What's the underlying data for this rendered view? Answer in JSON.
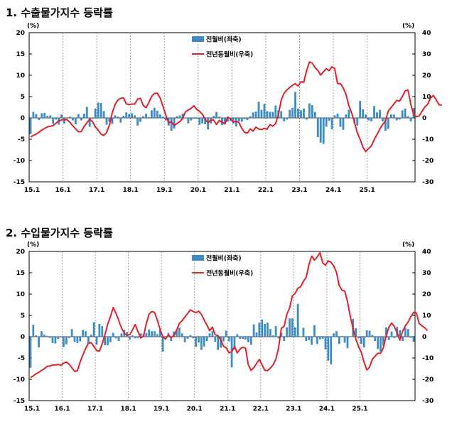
{
  "chart_data": [
    {
      "type": "bar+line",
      "title": "1. 수출물가지수 등락률",
      "left_unit": "(%)",
      "right_unit": "(%)",
      "left_ylim": [
        -15,
        20
      ],
      "right_ylim": [
        -30,
        40
      ],
      "left_ticks": [
        "20",
        "15",
        "10",
        "5",
        "0",
        "-5",
        "-10",
        "-15"
      ],
      "right_ticks": [
        "40",
        "30",
        "20",
        "10",
        "0",
        "-10",
        "-20",
        "-30"
      ],
      "x_ticks": [
        "15.1",
        "16.1",
        "17.1",
        "18.1",
        "19.1",
        "20.1",
        "21.1",
        "22.1",
        "23.1",
        "24.1",
        "25.1"
      ],
      "legend": {
        "bar": "전월비(좌축)",
        "line": "전년동월비(우축)"
      },
      "colors": {
        "bar": "#3E8CC4",
        "line": "#E0202A"
      },
      "series_bar": [
        -3.8,
        1.4,
        0.9,
        -0.5,
        1.1,
        1.2,
        0.5,
        0.6,
        -1.4,
        -0.4,
        -1.6,
        0.8,
        -1.3,
        -0.2,
        0.3,
        -0.6,
        -1.5,
        0.9,
        -0.6,
        1.0,
        2.6,
        -2.1,
        -0.2,
        2.2,
        3.6,
        3.5,
        1.6,
        -1.6,
        -0.9,
        -1.4,
        0.6,
        0.3,
        -1.1,
        0.5,
        1.3,
        0.9,
        1.1,
        0.6,
        -1.8,
        -0.9,
        0.4,
        1.0,
        0.2,
        1.8,
        2.4,
        1.7,
        0.8,
        0.3,
        -0.6,
        -1.8,
        -3.0,
        -2.5,
        0.4,
        0.6,
        1.0,
        0.1,
        -1.3,
        -0.6,
        -0.2,
        -0.2,
        -1.6,
        -1.3,
        -1.5,
        -2.7,
        -1.3,
        0.5,
        1.4,
        0.3,
        -1.7,
        -1.1,
        -0.9,
        -0.7,
        -1.3,
        -2.0,
        -0.8,
        -0.9,
        -0.3,
        -0.5,
        0.4,
        1.3,
        1.5,
        3.8,
        1.9,
        3.3,
        1.6,
        1.4,
        1.4,
        2.9,
        1.8,
        1.6,
        -0.8,
        -0.4,
        1.9,
        2.4,
        6.1,
        2.2,
        1.8,
        2.2,
        -0.4,
        3.4,
        3.0,
        1.4,
        -4.5,
        -5.8,
        -6.1,
        -2.1,
        -0.7,
        -2.7,
        0.6,
        1.0,
        -2.1,
        -2.8,
        0.8,
        1.9,
        0.1,
        -1.3,
        -1.8,
        4.0,
        2.0,
        0.8,
        -0.6,
        -0.8,
        2.8,
        1.3,
        1.9,
        -0.8,
        -3.0,
        -2.6,
        0.8,
        0.8,
        -0.6,
        -0.4,
        1.8,
        2.2,
        0.4,
        -0.8,
        2.3
      ],
      "series_line": [
        -8.9,
        -8.2,
        -7.6,
        -6.7,
        -5.7,
        -4.9,
        -4.2,
        -3.9,
        -3.6,
        -2.5,
        -1.4,
        -1.0,
        -0.7,
        -0.9,
        -2.1,
        -3.7,
        -5.1,
        -6.5,
        -6.4,
        -4.1,
        -2.3,
        -0.6,
        -1.8,
        -4.2,
        -5.7,
        -7.6,
        -8.2,
        -6.9,
        -3.3,
        2.3,
        6.2,
        8.4,
        9.2,
        9.4,
        6.6,
        6.2,
        6.5,
        6.5,
        8.8,
        9.2,
        5.9,
        4.8,
        7.2,
        10.1,
        11.5,
        11.6,
        9.4,
        5.5,
        1.5,
        -2.3,
        -1.8,
        -3.6,
        -2.6,
        -1.7,
        -0.3,
        2.9,
        3.7,
        4.5,
        5.7,
        4.0,
        3.1,
        1.7,
        -0.7,
        -2.2,
        -1.1,
        -1.0,
        -3.1,
        -1.2,
        -2.0,
        -2.8,
        0.4,
        -0.6,
        -1.9,
        -1.6,
        -2.2,
        -5.0,
        -6.8,
        -7.1,
        -5.2,
        -6.2,
        -4.3,
        -5.2,
        -5.5,
        -4.9,
        -5.3,
        -3.1,
        -3.9,
        -2.6,
        1.6,
        8.4,
        11.5,
        13.1,
        14.3,
        15.3,
        16.1,
        14.9,
        17.0,
        16.7,
        22.2,
        26.3,
        25.7,
        23.6,
        22.3,
        20.1,
        21.7,
        23.1,
        22.2,
        24.0,
        23.1,
        16.1,
        16.1,
        14.1,
        11.0,
        5.8,
        2.3,
        -2.0,
        -6.9,
        -10.0,
        -13.8,
        -15.8,
        -14.4,
        -13.1,
        -10.2,
        -7.8,
        -5.2,
        -3.1,
        -1.4,
        3.2,
        4.9,
        6.5,
        8.2,
        7.9,
        10.1,
        12.7,
        13.1,
        6.2,
        1.7,
        0.6,
        0.9,
        3.2,
        5.2,
        6.4,
        9.4,
        10.5,
        8.5,
        6.2,
        6.0
      ]
    },
    {
      "type": "bar+line",
      "title": "2. 수입물가지수 등락률",
      "left_unit": "(%)",
      "right_unit": "(%)",
      "left_ylim": [
        -15,
        20
      ],
      "right_ylim": [
        -30,
        40
      ],
      "left_ticks": [
        "20",
        "15",
        "10",
        "5",
        "0",
        "-5",
        "-10",
        "-15"
      ],
      "right_ticks": [
        "40",
        "30",
        "20",
        "10",
        "0",
        "-10",
        "-20",
        "-30"
      ],
      "x_ticks": [
        "15.1",
        "16.1",
        "17.1",
        "18.1",
        "19.1",
        "20.1",
        "21.1",
        "22.1",
        "23.1",
        "24.1",
        "25.1"
      ],
      "legend": {
        "bar": "전월비(좌축)",
        "line": "전년동월비(우축)"
      },
      "colors": {
        "bar": "#3E8CC4",
        "line": "#E0202A"
      },
      "series_bar": [
        -7.3,
        2.8,
        0.3,
        -2.5,
        1.3,
        0.5,
        0.2,
        -0.3,
        -1.5,
        -1.6,
        -0.5,
        -0.2,
        -2.4,
        -1.8,
        -0.3,
        1.8,
        -1.2,
        -1.5,
        -1.1,
        1.6,
        1.3,
        -1.6,
        0.5,
        3.4,
        -1.9,
        3.0,
        2.5,
        -2.0,
        -2.0,
        -1.3,
        0.9,
        -0.4,
        -1.0,
        0.8,
        1.6,
        1.1,
        -0.7,
        0.3,
        -0.4,
        -0.3,
        0.8,
        0.6,
        0.9,
        1.7,
        1.3,
        1.3,
        0.6,
        1.6,
        -3.5,
        -0.2,
        0.9,
        -1.0,
        1.2,
        1.6,
        2.1,
        0.8,
        -1.3,
        -0.5,
        0.4,
        -0.4,
        -2.4,
        -1.4,
        -3.1,
        -2.3,
        -1.0,
        0.8,
        1.3,
        -1.2,
        -3.1,
        -2.6,
        -1.1,
        1.4,
        -1.1,
        -7.2,
        -3.0,
        0.6,
        -0.5,
        -0.5,
        -0.7,
        -1.3,
        -1.9,
        2.9,
        1.0,
        3.3,
        4.0,
        3.0,
        3.3,
        1.8,
        0.3,
        2.5,
        -0.4,
        0.9,
        -1.0,
        2.2,
        4.3,
        4.3,
        2.2,
        7.7,
        -0.1,
        2.1,
        -1.0,
        -0.8,
        -1.9,
        2.7,
        -1.7,
        -0.6,
        -0.5,
        -3.0,
        -5.6,
        -6.5,
        0.8,
        1.3,
        -1.7,
        0.2,
        -1.4,
        -2.7,
        0.1,
        4.2,
        2.0,
        -0.4,
        -1.7,
        -2.5,
        1.5,
        1.4,
        0.4,
        -1.0,
        -2.9,
        -3.5,
        -2.1,
        2.2,
        -0.8,
        1.2,
        -0.3,
        2.3,
        1.5,
        -1.0,
        2.1,
        1.8,
        -0.3,
        -1.2
      ],
      "series_line": [
        -19.2,
        -18.4,
        -17.4,
        -16.7,
        -15.8,
        -15.1,
        -13.9,
        -13.8,
        -13.3,
        -13.3,
        -13.0,
        -13.5,
        -12.4,
        -11.9,
        -12.9,
        -14.6,
        -16.3,
        -16.0,
        -11.8,
        -8.6,
        -5.5,
        -3.1,
        -2.8,
        -4.6,
        -6.5,
        -6.8,
        -3.3,
        0.9,
        5.8,
        9.4,
        13.7,
        11.0,
        7.6,
        4.1,
        1.6,
        0.7,
        0.9,
        3.2,
        5.7,
        2.3,
        -0.6,
        0.2,
        6.0,
        10.6,
        11.8,
        11.4,
        7.7,
        3.5,
        -0.1,
        -1.1,
        0.8,
        -0.4,
        0.5,
        3.0,
        6.3,
        7.5,
        9.2,
        10.9,
        12.6,
        11.8,
        11.3,
        12.0,
        10.5,
        7.8,
        5.4,
        2.8,
        4.5,
        0.9,
        0.5,
        -1.5,
        -4.5,
        -5.2,
        -7.6,
        -7.0,
        -4.6,
        -7.6,
        -5.8,
        -4.9,
        -5.4,
        -13.1,
        -15.8,
        -14.6,
        -12.5,
        -10.7,
        -13.2,
        -15.8,
        -15.9,
        -14.8,
        -13.2,
        -10.6,
        -5.2,
        3.9,
        4.9,
        10.5,
        13.5,
        19.1,
        20.3,
        22.8,
        23.4,
        26.0,
        27.8,
        33.8,
        37.8,
        35.9,
        37.4,
        39.4,
        34.6,
        33.5,
        35.6,
        34.9,
        33.2,
        30.1,
        24.0,
        21.9,
        21.4,
        16.4,
        9.5,
        3.9,
        -1.0,
        -4.6,
        -7.4,
        -11.9,
        -15.6,
        -14.3,
        -10.6,
        -9.2,
        -7.8,
        -7.8,
        -5.2,
        0.2,
        4.5,
        6.4,
        4.8,
        1.8,
        -1.6,
        2.6,
        5.1,
        6.9,
        9.4,
        11.4,
        11.2,
        6.2,
        5.1,
        4.2,
        2.9
      ]
    }
  ]
}
